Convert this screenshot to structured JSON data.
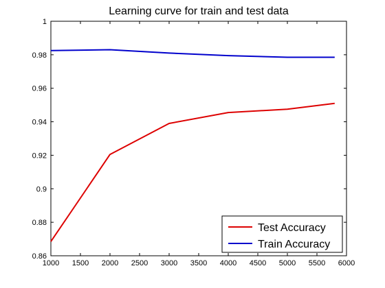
{
  "chart_data": {
    "type": "line",
    "title": "Learning curve for train and test data",
    "xlabel": "",
    "ylabel": "",
    "xlim": [
      1000,
      6000
    ],
    "ylim": [
      0.86,
      1
    ],
    "xticks": [
      1000,
      1500,
      2000,
      2500,
      3000,
      3500,
      4000,
      4500,
      5000,
      5500,
      6000
    ],
    "xtick_labels": [
      "1000",
      "1500",
      "2000",
      "2500",
      "3000",
      "3500",
      "4000",
      "4500",
      "5000",
      "5500",
      "6000"
    ],
    "yticks": [
      0.86,
      0.88,
      0.9,
      0.92,
      0.94,
      0.96,
      0.98,
      1
    ],
    "ytick_labels": [
      "0.86",
      "0.88",
      "0.9",
      "0.92",
      "0.94",
      "0.96",
      "0.98",
      "1"
    ],
    "grid": false,
    "legend": "bottom-right",
    "series": [
      {
        "name": "Test Accuracy",
        "color": "#dd0000",
        "x": [
          1000,
          2000,
          3000,
          4000,
          5000,
          5800
        ],
        "y": [
          0.8685,
          0.9205,
          0.939,
          0.9455,
          0.9475,
          0.951
        ]
      },
      {
        "name": "Train Accuracy",
        "color": "#0000cc",
        "x": [
          1000,
          2000,
          3000,
          4000,
          5000,
          5800
        ],
        "y": [
          0.9825,
          0.983,
          0.981,
          0.9795,
          0.9785,
          0.9785
        ]
      }
    ]
  }
}
